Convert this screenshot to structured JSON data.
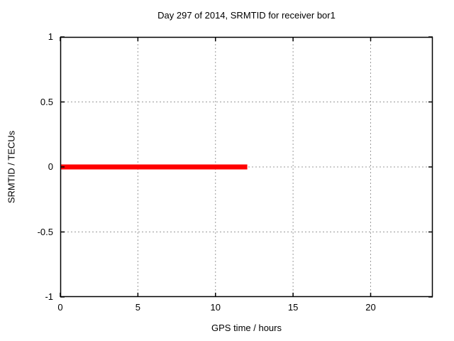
{
  "page": {
    "background_color": "#ffffff",
    "text_color": "#000000"
  },
  "chart_data": {
    "type": "line",
    "title": "Day 297 of 2014, SRMTID for receiver bor1",
    "xlabel": "GPS time / hours",
    "ylabel": "SRMTID / TECUs",
    "xlim": [
      0,
      24
    ],
    "ylim": [
      -1,
      1
    ],
    "x_tick_values": [
      0,
      5,
      10,
      15,
      20
    ],
    "x_tick_labels": [
      "0",
      "5",
      "10",
      "15",
      "20"
    ],
    "y_tick_values": [
      -1,
      -0.5,
      0,
      0.5,
      1
    ],
    "y_tick_labels": [
      "-1",
      "-0.5",
      "0",
      "0.5",
      "1"
    ],
    "grid": true,
    "grid_style": "dotted",
    "legend_position": "none",
    "axis_color": "#000000",
    "grid_color": "#9a9a9a",
    "series": [
      {
        "name": "SRMTID",
        "color": "#ff0000",
        "line_width": 7,
        "x": [
          0,
          12.05
        ],
        "y": [
          0,
          0
        ]
      }
    ]
  }
}
